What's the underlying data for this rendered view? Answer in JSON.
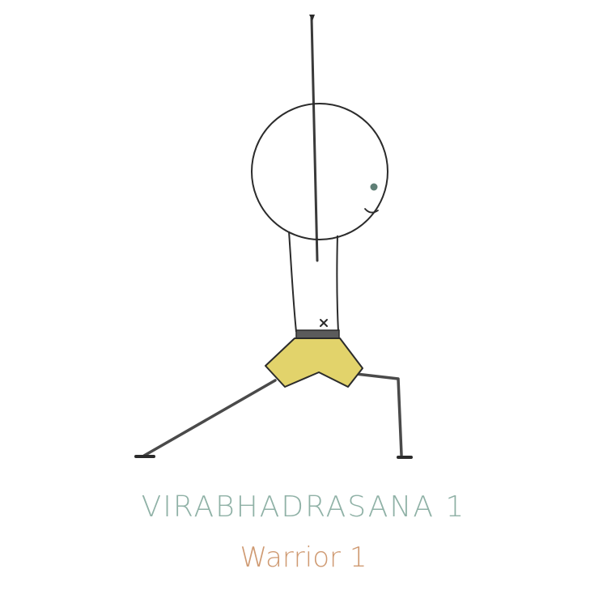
{
  "pose": {
    "sanskrit_name": "VIRABHADRASANA 1",
    "english_name": "Warrior 1"
  },
  "colors": {
    "outline": "#2b2b2b",
    "limbs": "#4a4a4a",
    "shorts": "#e2d36b",
    "belt": "#5b5b5b",
    "eye": "#5f7f76",
    "title": "#8fb1a6",
    "subtitle": "#cf9a72"
  }
}
